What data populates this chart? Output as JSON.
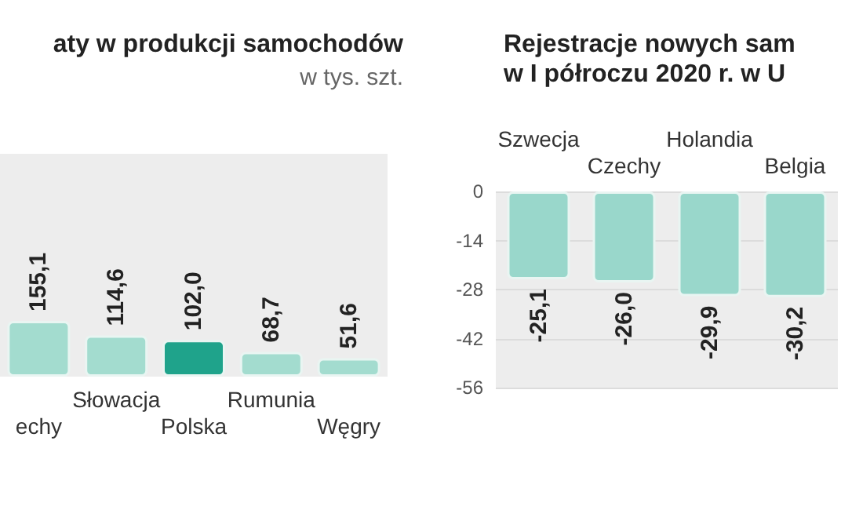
{
  "chart_data": [
    {
      "type": "bar",
      "title": "aty w produkcji samochodów",
      "subtitle": "w tys. szt.",
      "categories": [
        "echy",
        "Słowacja",
        "Polska",
        "Rumunia",
        "Węgry"
      ],
      "values": [
        155.1,
        114.6,
        102.0,
        68.7,
        51.6
      ],
      "colors": [
        "#a3dccf",
        "#a3dccf",
        "#1fa38b",
        "#a3dccf",
        "#a3dccf"
      ],
      "value_labels": [
        "155,1",
        "114,6",
        "102,0",
        "68,7",
        "51,6"
      ]
    },
    {
      "type": "bar",
      "title": "Rejestracje nowych sam\nw I półroczu 2020 r. w U",
      "categories": [
        "Szwecja",
        "Czechy",
        "Holandia",
        "Belgia"
      ],
      "values": [
        -25.1,
        -26.0,
        -29.9,
        -30.2
      ],
      "color": "#99d7cb",
      "value_labels": [
        "-25,1",
        "-26,0",
        "-29,9",
        "-30,2"
      ],
      "ylim": [
        -56,
        0
      ],
      "yticks": [
        -56,
        -42,
        -28,
        -14,
        0
      ],
      "grid": "y"
    }
  ]
}
